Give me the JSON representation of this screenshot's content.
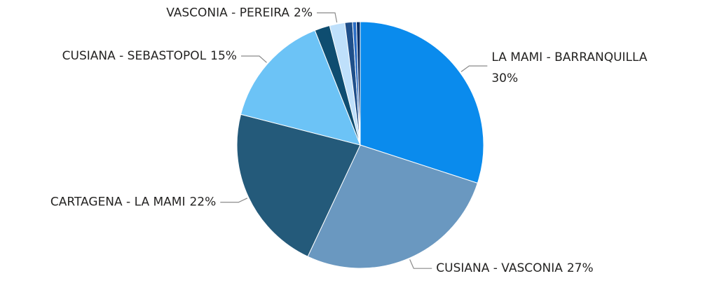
{
  "chart_data": {
    "type": "pie",
    "categories": [
      "LA MAMI - BARRANQUILLA",
      "CUSIANA - VASCONIA",
      "CARTAGENA - LA MAMI",
      "CUSIANA - SEBASTOPOL",
      null,
      "VASCONIA - PEREIRA",
      null,
      null,
      null
    ],
    "values": [
      30,
      27,
      22,
      15,
      2,
      2,
      1,
      0.5,
      0.5
    ],
    "value_labels": [
      "30%",
      "27%",
      "22%",
      "15%",
      null,
      "2%",
      null,
      null,
      null
    ],
    "colors": [
      "#0a8bed",
      "#6a98c0",
      "#245a7a",
      "#6cc3f6",
      "#0e4d70",
      "#bfe0fb",
      "#1f4f8a",
      "#2a6cc4",
      "#0b2f66"
    ]
  }
}
